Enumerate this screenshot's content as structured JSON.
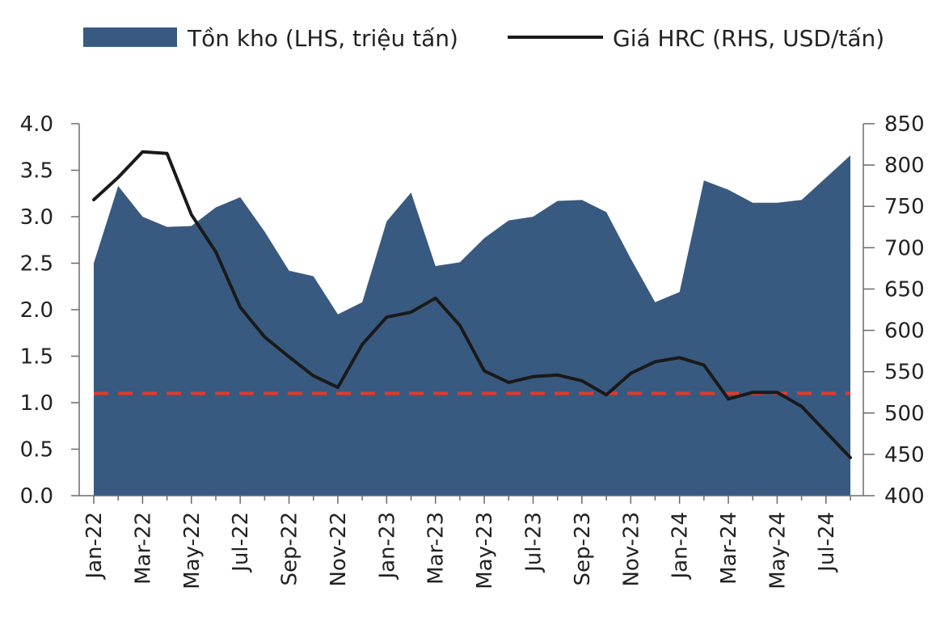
{
  "chart_data": {
    "type": "area",
    "title": "",
    "xlabel": "",
    "ylabel_left": "",
    "ylabel_right": "",
    "x": [
      "Jan-22",
      "Feb-22",
      "Mar-22",
      "Apr-22",
      "May-22",
      "Jun-22",
      "Jul-22",
      "Aug-22",
      "Sep-22",
      "Oct-22",
      "Nov-22",
      "Dec-22",
      "Jan-23",
      "Feb-23",
      "Mar-23",
      "Apr-23",
      "May-23",
      "Jun-23",
      "Jul-23",
      "Aug-23",
      "Sep-23",
      "Oct-23",
      "Nov-23",
      "Dec-23",
      "Jan-24",
      "Feb-24",
      "Mar-24",
      "Apr-24",
      "May-24",
      "Jun-24",
      "Jul-24",
      "Aug-24"
    ],
    "x_tick_labels": [
      "Jan-22",
      "Mar-22",
      "May-22",
      "Jul-22",
      "Sep-22",
      "Nov-22",
      "Jan-23",
      "Mar-23",
      "May-23",
      "Jul-23",
      "Sep-23",
      "Nov-23",
      "Jan-24",
      "Mar-24",
      "May-24",
      "Jul-24"
    ],
    "series": [
      {
        "name": "Tồn kho (LHS, triệu tấn)",
        "type": "area",
        "axis": "left",
        "color": "#385a80",
        "values": [
          2.5,
          3.33,
          3.0,
          2.89,
          2.9,
          3.1,
          3.21,
          2.84,
          2.42,
          2.36,
          1.95,
          2.08,
          2.95,
          3.26,
          2.47,
          2.51,
          2.77,
          2.96,
          3.0,
          3.17,
          3.18,
          3.05,
          2.55,
          2.08,
          2.19,
          3.39,
          3.29,
          3.15,
          3.15,
          3.18,
          3.42,
          3.66
        ]
      },
      {
        "name": "Giá HRC (RHS, USD/tấn)",
        "type": "line",
        "axis": "right",
        "color": "#1a1a1a",
        "values": [
          758,
          785,
          816,
          814,
          740,
          695,
          628,
          592,
          568,
          545,
          531,
          583,
          616,
          622,
          639,
          606,
          551,
          537,
          544,
          546,
          539,
          522,
          548,
          562,
          567,
          558,
          517,
          525,
          525,
          508,
          477,
          446
        ]
      },
      {
        "type": "reference_line",
        "axis": "left",
        "color": "#e03a2a",
        "style": "dashed",
        "value": 1.1
      }
    ],
    "y_left": {
      "min": 0.0,
      "max": 4.0,
      "step": 0.5,
      "ticks": [
        "0.0",
        "0.5",
        "1.0",
        "1.5",
        "2.0",
        "2.5",
        "3.0",
        "3.5",
        "4.0"
      ]
    },
    "y_right": {
      "min": 400,
      "max": 850,
      "step": 50,
      "ticks": [
        "400",
        "450",
        "500",
        "550",
        "600",
        "650",
        "700",
        "750",
        "800",
        "850"
      ]
    },
    "grid": false,
    "legend_position": "top"
  }
}
